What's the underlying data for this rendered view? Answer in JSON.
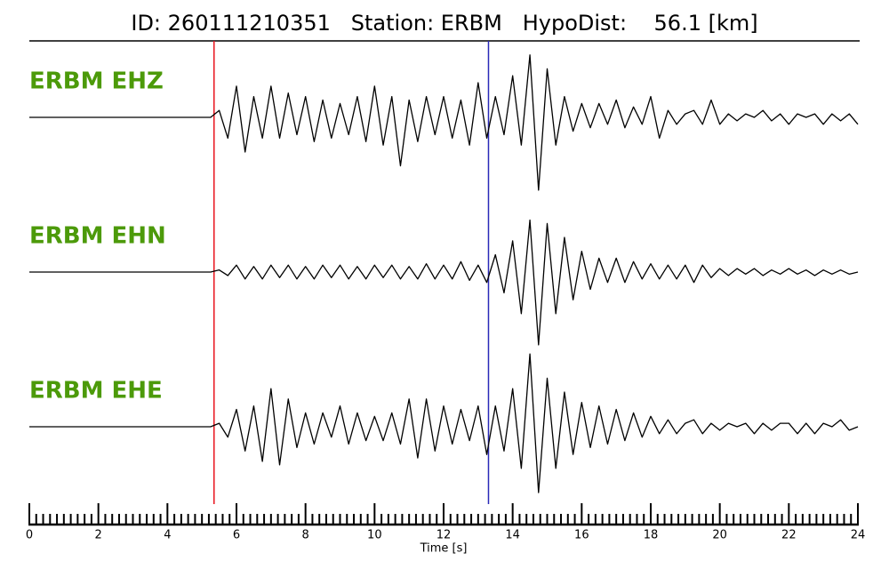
{
  "chart_data": {
    "type": "line",
    "title": "ID: 260111210351   Station: ERBM   HypoDist:    56.1 [km]",
    "xlabel": "Time [s]",
    "xlim": [
      0,
      24
    ],
    "xticks": [
      0,
      2,
      4,
      6,
      8,
      10,
      12,
      14,
      16,
      18,
      20,
      22,
      24
    ],
    "xminorticks": [
      0.2,
      0.4,
      0.6,
      0.8,
      1,
      1.2,
      1.4,
      1.6,
      1.8,
      2.2,
      2.4,
      2.6,
      2.8,
      3,
      3.2,
      3.4,
      3.6,
      3.8,
      4.2,
      4.4,
      4.6,
      4.8,
      5,
      5.2,
      5.4,
      5.6,
      5.8,
      6.2,
      6.4,
      6.6,
      6.8,
      7,
      7.2,
      7.4,
      7.6,
      7.8,
      8.2,
      8.4,
      8.6,
      8.8,
      9,
      9.2,
      9.4,
      9.6,
      9.8,
      10.2,
      10.4,
      10.6,
      10.8,
      11,
      11.2,
      11.4,
      11.6,
      11.8,
      12.2,
      12.4,
      12.6,
      12.8,
      13,
      13.2,
      13.4,
      13.6,
      13.8,
      14.2,
      14.4,
      14.6,
      14.8,
      15,
      15.2,
      15.4,
      15.6,
      15.8,
      16.2,
      16.4,
      16.6,
      16.8,
      17,
      17.2,
      17.4,
      17.6,
      17.8,
      18.2,
      18.4,
      18.6,
      18.8,
      19,
      19.2,
      19.4,
      19.6,
      19.8,
      20.2,
      20.4,
      20.6,
      20.8,
      21,
      21.2,
      21.4,
      21.6,
      21.8,
      22.2,
      22.4,
      22.6,
      22.8,
      23,
      23.2,
      23.4,
      23.6,
      23.8
    ],
    "picks": [
      {
        "color": "#e8141e",
        "x": 5.35
      },
      {
        "color": "#2a2ab8",
        "x": 13.3
      }
    ],
    "label_color": "#4c9a0a",
    "x": [
      0,
      0.25,
      0.5,
      0.75,
      1,
      1.25,
      1.5,
      1.75,
      2,
      2.25,
      2.5,
      2.75,
      3,
      3.25,
      3.5,
      3.75,
      4,
      4.25,
      4.5,
      4.75,
      5,
      5.25,
      5.5,
      5.75,
      6,
      6.25,
      6.5,
      6.75,
      7,
      7.25,
      7.5,
      7.75,
      8,
      8.25,
      8.5,
      8.75,
      9,
      9.25,
      9.5,
      9.75,
      10,
      10.25,
      10.5,
      10.75,
      11,
      11.25,
      11.5,
      11.75,
      12,
      12.25,
      12.5,
      12.75,
      13,
      13.25,
      13.5,
      13.75,
      14,
      14.25,
      14.5,
      14.75,
      15,
      15.25,
      15.5,
      15.75,
      16,
      16.25,
      16.5,
      16.75,
      17,
      17.25,
      17.5,
      17.75,
      18,
      18.25,
      18.5,
      18.75,
      19,
      19.25,
      19.5,
      19.75,
      20,
      20.25,
      20.5,
      20.75,
      21,
      21.25,
      21.5,
      21.75,
      22,
      22.25,
      22.5,
      22.75,
      23,
      23.25,
      23.5,
      23.75,
      24
    ],
    "series": [
      {
        "name": "ERBM EHZ",
        "color": "#000000",
        "values": [
          0,
          0,
          0,
          0,
          0,
          0,
          0,
          0,
          0,
          0,
          0,
          0,
          0,
          0,
          0,
          0,
          0,
          0,
          0,
          0,
          0,
          0,
          0.1,
          -0.3,
          0.45,
          -0.5,
          0.3,
          -0.3,
          0.45,
          -0.3,
          0.35,
          -0.25,
          0.3,
          -0.35,
          0.25,
          -0.3,
          0.2,
          -0.25,
          0.3,
          -0.35,
          0.45,
          -0.4,
          0.3,
          -0.7,
          0.25,
          -0.35,
          0.3,
          -0.25,
          0.3,
          -0.3,
          0.25,
          -0.4,
          0.5,
          -0.3,
          0.3,
          -0.25,
          0.6,
          -0.4,
          0.9,
          -1.05,
          0.7,
          -0.4,
          0.3,
          -0.2,
          0.2,
          -0.15,
          0.2,
          -0.1,
          0.25,
          -0.15,
          0.15,
          -0.1,
          0.3,
          -0.3,
          0.1,
          -0.1,
          0.05,
          0.1,
          -0.1,
          0.25,
          -0.1,
          0.05,
          -0.05,
          0.05,
          0,
          0.1,
          -0.05,
          0.05,
          -0.1,
          0.05,
          0,
          0.05,
          -0.1,
          0.05,
          -0.05,
          0.05,
          -0.1
        ]
      },
      {
        "name": "ERBM EHN",
        "color": "#000000",
        "values": [
          0,
          0,
          0,
          0,
          0,
          0,
          0,
          0,
          0,
          0,
          0,
          0,
          0,
          0,
          0,
          0,
          0,
          0,
          0,
          0,
          0,
          0,
          0.03,
          -0.05,
          0.1,
          -0.1,
          0.08,
          -0.1,
          0.1,
          -0.08,
          0.1,
          -0.1,
          0.08,
          -0.1,
          0.1,
          -0.08,
          0.1,
          -0.1,
          0.08,
          -0.1,
          0.1,
          -0.08,
          0.1,
          -0.1,
          0.08,
          -0.1,
          0.12,
          -0.1,
          0.1,
          -0.1,
          0.15,
          -0.12,
          0.1,
          -0.15,
          0.25,
          -0.3,
          0.45,
          -0.6,
          0.75,
          -1.05,
          0.7,
          -0.6,
          0.5,
          -0.4,
          0.3,
          -0.25,
          0.2,
          -0.15,
          0.2,
          -0.15,
          0.15,
          -0.1,
          0.12,
          -0.1,
          0.1,
          -0.1,
          0.1,
          -0.15,
          0.1,
          -0.08,
          0.05,
          -0.05,
          0.05,
          -0.03,
          0.05,
          -0.05,
          0.03,
          -0.03,
          0.05,
          -0.03,
          0.03,
          -0.05,
          0.03,
          -0.03,
          0.03,
          -0.03,
          0
        ]
      },
      {
        "name": "ERBM EHE",
        "color": "#000000",
        "values": [
          0,
          0,
          0,
          0,
          0,
          0,
          0,
          0,
          0,
          0,
          0,
          0,
          0,
          0,
          0,
          0,
          0,
          0,
          0,
          0,
          0,
          0,
          0.05,
          -0.15,
          0.25,
          -0.35,
          0.3,
          -0.5,
          0.55,
          -0.55,
          0.4,
          -0.3,
          0.2,
          -0.25,
          0.2,
          -0.15,
          0.3,
          -0.25,
          0.2,
          -0.2,
          0.15,
          -0.2,
          0.2,
          -0.25,
          0.4,
          -0.45,
          0.4,
          -0.35,
          0.3,
          -0.25,
          0.25,
          -0.2,
          0.3,
          -0.4,
          0.3,
          -0.35,
          0.55,
          -0.6,
          1.05,
          -0.95,
          0.7,
          -0.6,
          0.5,
          -0.4,
          0.35,
          -0.3,
          0.3,
          -0.25,
          0.25,
          -0.2,
          0.2,
          -0.15,
          0.15,
          -0.1,
          0.1,
          -0.1,
          0.05,
          0.1,
          -0.1,
          0.05,
          -0.05,
          0.05,
          0,
          0.05,
          -0.1,
          0.05,
          -0.05,
          0.05,
          0.05,
          -0.1,
          0.05,
          -0.1,
          0.05,
          0,
          0.1,
          -0.05,
          0
        ]
      }
    ]
  }
}
